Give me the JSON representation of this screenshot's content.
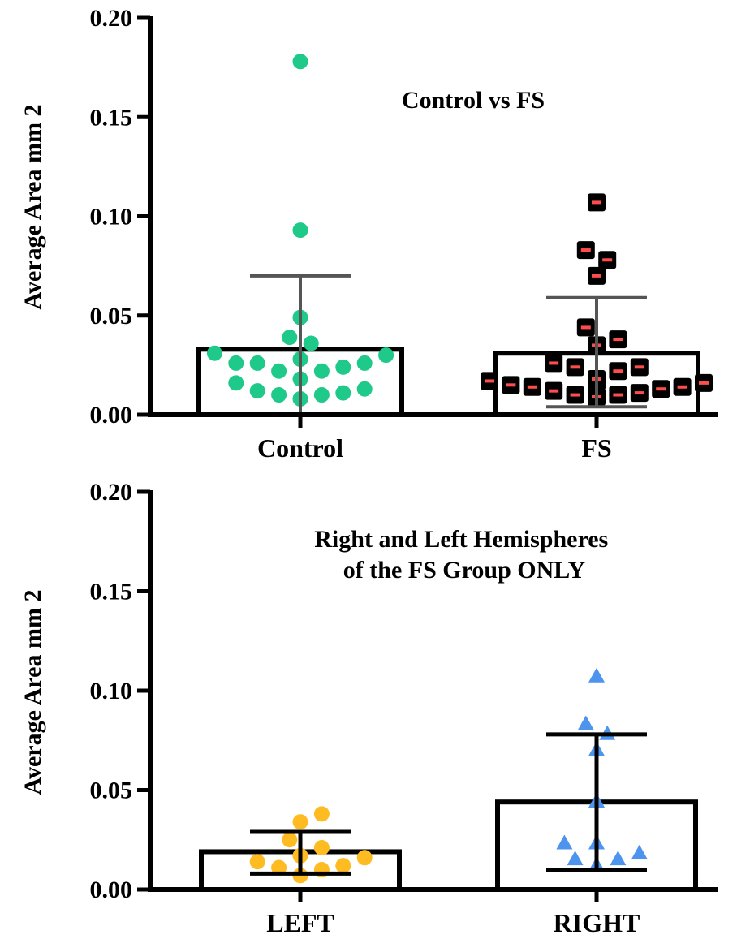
{
  "chart_data": [
    {
      "type": "scatter",
      "title": "Control vs FS",
      "ylabel": "Average Area mm 2",
      "ylim": [
        0,
        0.2
      ],
      "yticks": [
        "0.00",
        "0.05",
        "0.10",
        "0.15",
        "0.20"
      ],
      "categories": [
        "Control",
        "FS"
      ],
      "series": [
        {
          "category": "Control",
          "marker": "circle",
          "color": "#1fc98a",
          "bar_mean": 0.033,
          "error": [
            0.0,
            0.07
          ],
          "values": [
            0.178,
            0.093,
            0.049,
            0.039,
            0.036,
            0.03,
            0.031,
            0.028,
            0.026,
            0.026,
            0.026,
            0.024,
            0.022,
            0.022,
            0.018,
            0.016,
            0.013,
            0.012,
            0.011,
            0.01,
            0.01,
            0.008
          ]
        },
        {
          "category": "FS",
          "marker": "square",
          "color": "#000000",
          "accent": "#ff4d4d",
          "bar_mean": 0.031,
          "error": [
            0.004,
            0.059
          ],
          "values": [
            0.107,
            0.083,
            0.078,
            0.07,
            0.044,
            0.038,
            0.035,
            0.026,
            0.024,
            0.024,
            0.022,
            0.018,
            0.017,
            0.017,
            0.017,
            0.016,
            0.015,
            0.014,
            0.014,
            0.013,
            0.012,
            0.011,
            0.01,
            0.01,
            0.009
          ]
        }
      ]
    },
    {
      "type": "scatter",
      "title": "Right and Left Hemispheres of the FS Group ONLY",
      "title_lines": [
        "Right and Left Hemispheres",
        "of the FS Group ONLY"
      ],
      "ylabel": "Average Area mm 2",
      "ylim": [
        0,
        0.2
      ],
      "yticks": [
        "0.00",
        "0.05",
        "0.10",
        "0.15",
        "0.20"
      ],
      "categories": [
        "LEFT",
        "RIGHT"
      ],
      "series": [
        {
          "category": "LEFT",
          "marker": "circle",
          "color": "#ffbb22",
          "bar_mean": 0.019,
          "error": [
            0.008,
            0.029
          ],
          "values": [
            0.038,
            0.034,
            0.025,
            0.021,
            0.017,
            0.016,
            0.014,
            0.012,
            0.011,
            0.01,
            0.007
          ]
        },
        {
          "category": "RIGHT",
          "marker": "triangle",
          "color": "#4d94ef",
          "bar_mean": 0.044,
          "error": [
            0.01,
            0.078
          ],
          "values": [
            0.107,
            0.083,
            0.078,
            0.07,
            0.044,
            0.023,
            0.023,
            0.018,
            0.015,
            0.015,
            0.012
          ]
        }
      ]
    }
  ]
}
